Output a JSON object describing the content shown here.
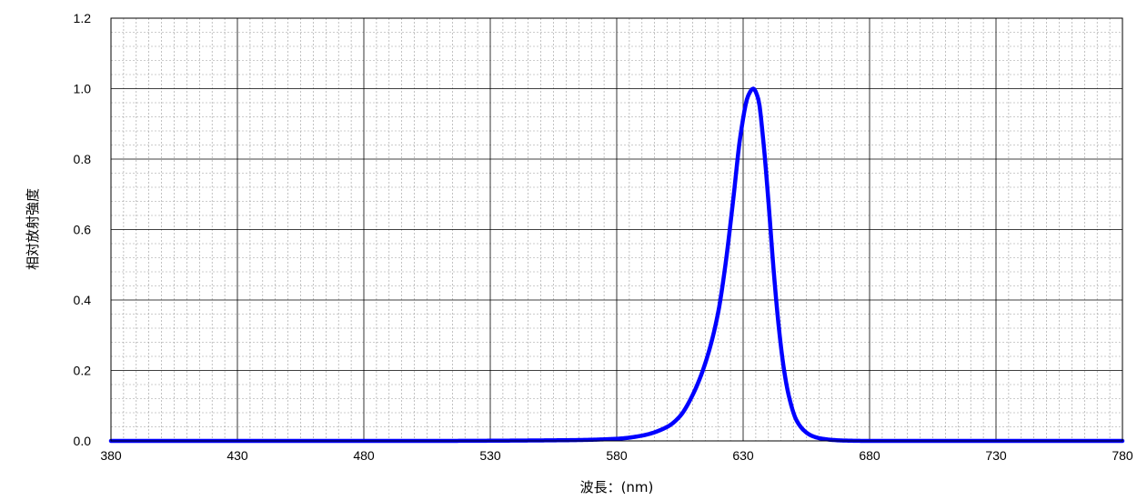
{
  "chart_data": {
    "type": "line",
    "title": "",
    "xlabel": "波長：(nm)",
    "ylabel": "相対放射強度",
    "xlim": [
      380,
      780
    ],
    "ylim": [
      0,
      1.2
    ],
    "x_ticks": [
      "380",
      "430",
      "480",
      "530",
      "580",
      "630",
      "680",
      "730",
      "780"
    ],
    "y_ticks": [
      "0.0",
      "0.2",
      "0.4",
      "0.6",
      "0.8",
      "1.0",
      "1.2"
    ],
    "grid": "major and minor",
    "legend": "none",
    "series": [
      {
        "color": "#0000ff",
        "x": [
          380,
          500,
          560,
          580,
          590,
          600,
          605,
          610,
          615,
          620,
          623,
          626,
          629,
          632,
          634,
          636,
          638,
          640,
          642,
          644,
          646,
          648,
          651,
          654,
          657,
          660,
          665,
          670,
          680,
          700,
          780
        ],
        "y": [
          0.0,
          0.0,
          0.002,
          0.006,
          0.015,
          0.04,
          0.07,
          0.13,
          0.22,
          0.36,
          0.5,
          0.68,
          0.87,
          0.98,
          1.0,
          0.97,
          0.85,
          0.68,
          0.49,
          0.33,
          0.21,
          0.13,
          0.06,
          0.03,
          0.015,
          0.008,
          0.003,
          0.001,
          0.0,
          0.0,
          0.0
        ]
      }
    ]
  }
}
